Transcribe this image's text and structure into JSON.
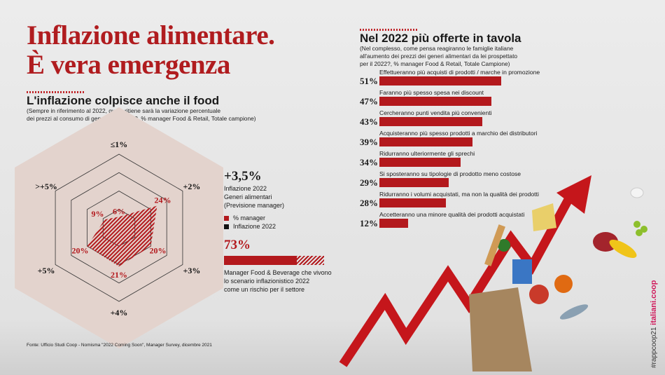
{
  "header": {
    "title_line1": "Inflazione alimentare.",
    "title_line2": "È vera emergenza"
  },
  "left": {
    "title": "L'inflazione colpisce anche il food",
    "subtitle_line1": "(Sempre in riferimento al 2022, quale ritiene sarà la variazione percentuale",
    "subtitle_line2": "dei prezzi al consumo di generi alimentari?, % manager Food & Retail, Totale campione)",
    "inflation_value": "+3,5%",
    "inflation_desc1": "Inflazione 2022",
    "inflation_desc2": "Generi alimentari",
    "inflation_desc3": "(Previsione manager)",
    "legend": [
      {
        "label": "% manager",
        "color": "#b3191d"
      },
      {
        "label": "Inflazione 2022",
        "color": "#111111"
      }
    ],
    "risk_value": "73%",
    "risk_fraction": 0.73,
    "risk_desc1": "Manager Food & Beverage che vivono",
    "risk_desc2": "lo scenario inflazionistico 2022",
    "risk_desc3": "come un rischio per il settore",
    "source": "Fonte: Ufficio Studi Coop - Nomisma \"2022 Coming Soon\", Manager Survey, dicembre 2021"
  },
  "right": {
    "title": "Nel 2022 più offerte in tavola",
    "subtitle_line1": "(Nel complesso, come pensa reagiranno le famiglie italiane",
    "subtitle_line2": "all'aumento dei prezzi dei generi alimentari da lei prospettato",
    "subtitle_line3": "per il 2022?, % manager Food & Retail, Totale Campione)"
  },
  "side": {
    "hashtag": "#rappcoop21",
    "site": "italiani.coop"
  },
  "chart_data": [
    {
      "type": "radar",
      "categories": [
        "≤1%",
        "+2%",
        "+3%",
        "+4%",
        "+5%",
        ">+5%"
      ],
      "series": [
        {
          "name": "% manager",
          "values": [
            6,
            24,
            20,
            21,
            20,
            9
          ],
          "labels": [
            "6%",
            "24%",
            "20%",
            "21%",
            "20%",
            "9%"
          ]
        }
      ],
      "rlim": [
        0,
        40
      ],
      "color": "#b3191d"
    },
    {
      "type": "bar",
      "orientation": "horizontal",
      "categories": [
        "Effettueranno più acquisti di prodotti / marche in promozione",
        "Faranno più spesso spesa nei discount",
        "Cercheranno punti vendita più convenienti",
        "Acquisteranno più spesso prodotti a marchio dei distributori",
        "Ridurranno ulteriormente gli sprechi",
        "Si sposteranno su tipologie di prodotto meno costose",
        "Ridurranno i volumi acquistati, ma non la qualità dei prodotti",
        "Accetteranno una minore qualità dei prodotti acquistati"
      ],
      "values": [
        51,
        47,
        43,
        39,
        34,
        29,
        28,
        12
      ],
      "labels": [
        "51%",
        "47%",
        "43%",
        "39%",
        "34%",
        "29%",
        "28%",
        "12%"
      ],
      "color": "#b3191d"
    }
  ]
}
